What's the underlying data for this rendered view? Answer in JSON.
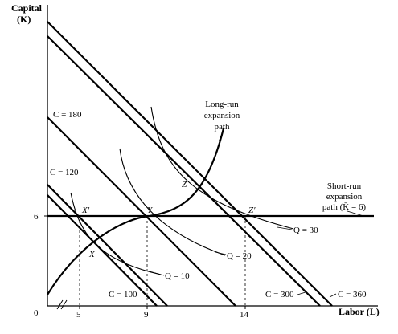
{
  "axes": {
    "y_title": "Capital",
    "y_symbol": "(K)",
    "x_title": "Labor (L)",
    "origin": "0",
    "x_ticks": [
      "5",
      "9",
      "14"
    ],
    "y_ticks": [
      "6"
    ]
  },
  "isocosts": {
    "c100": "C = 100",
    "c120": "C = 120",
    "c180": "C = 180",
    "c300": "C = 300",
    "c360": "C = 360"
  },
  "isoquants": {
    "q10": "Q = 10",
    "q20": "Q = 20",
    "q30": "Q = 30"
  },
  "points": {
    "x": "X",
    "x_prime": "X′",
    "y": "Y",
    "z": "Z",
    "z_prime": "Z′"
  },
  "long_run": [
    "Long-run",
    "expansion",
    "path"
  ],
  "short_run": [
    "Short-run",
    "expansion",
    "path (K̄ = 6)"
  ]
}
